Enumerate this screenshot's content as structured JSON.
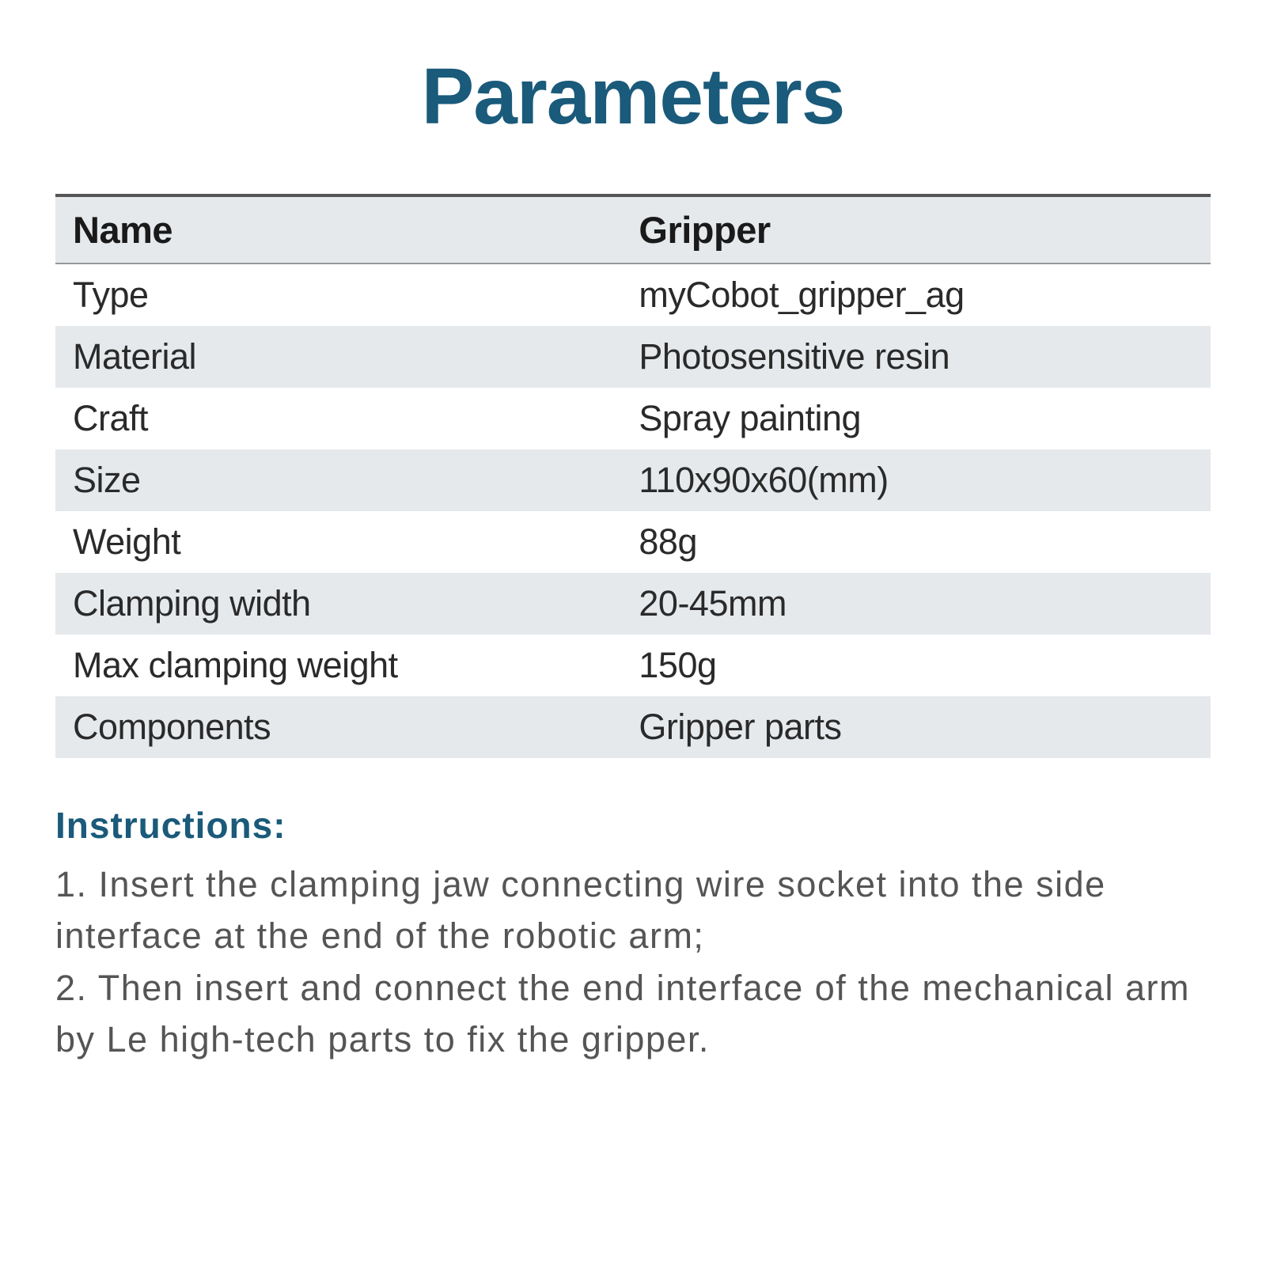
{
  "title": "Parameters",
  "table": {
    "header": {
      "col1": "Name",
      "col2": "Gripper"
    },
    "rows": [
      {
        "label": "Type",
        "value": "myCobot_gripper_ag"
      },
      {
        "label": "Material",
        "value": "Photosensitive resin"
      },
      {
        "label": "Craft",
        "value": "Spray painting"
      },
      {
        "label": "Size",
        "value": "110x90x60(mm)"
      },
      {
        "label": "Weight",
        "value": "88g"
      },
      {
        "label": "Clamping width",
        "value": "20-45mm"
      },
      {
        "label": "Max clamping weight",
        "value": "150g"
      },
      {
        "label": "Components",
        "value": "Gripper parts"
      }
    ],
    "styling": {
      "header_bg": "#e5e9ec",
      "row_odd_bg": "#ffffff",
      "row_even_bg": "#e5e9ec",
      "top_border_color": "#555555",
      "header_border_color": "#999999",
      "header_fontsize": 47,
      "row_fontsize": 45,
      "text_color": "#2a2a2a"
    }
  },
  "instructions": {
    "title": "Instructions:",
    "lines": [
      "1. Insert the clamping jaw connecting wire socket into the side interface at the end of the robotic arm;",
      "2. Then insert and connect the end interface of the mechanical arm by Le high-tech parts to fix the gripper."
    ],
    "title_color": "#1a5a7a",
    "body_color": "#555555",
    "title_fontsize": 46,
    "body_fontsize": 45
  },
  "colors": {
    "accent": "#1a5a7a",
    "background": "#ffffff"
  }
}
